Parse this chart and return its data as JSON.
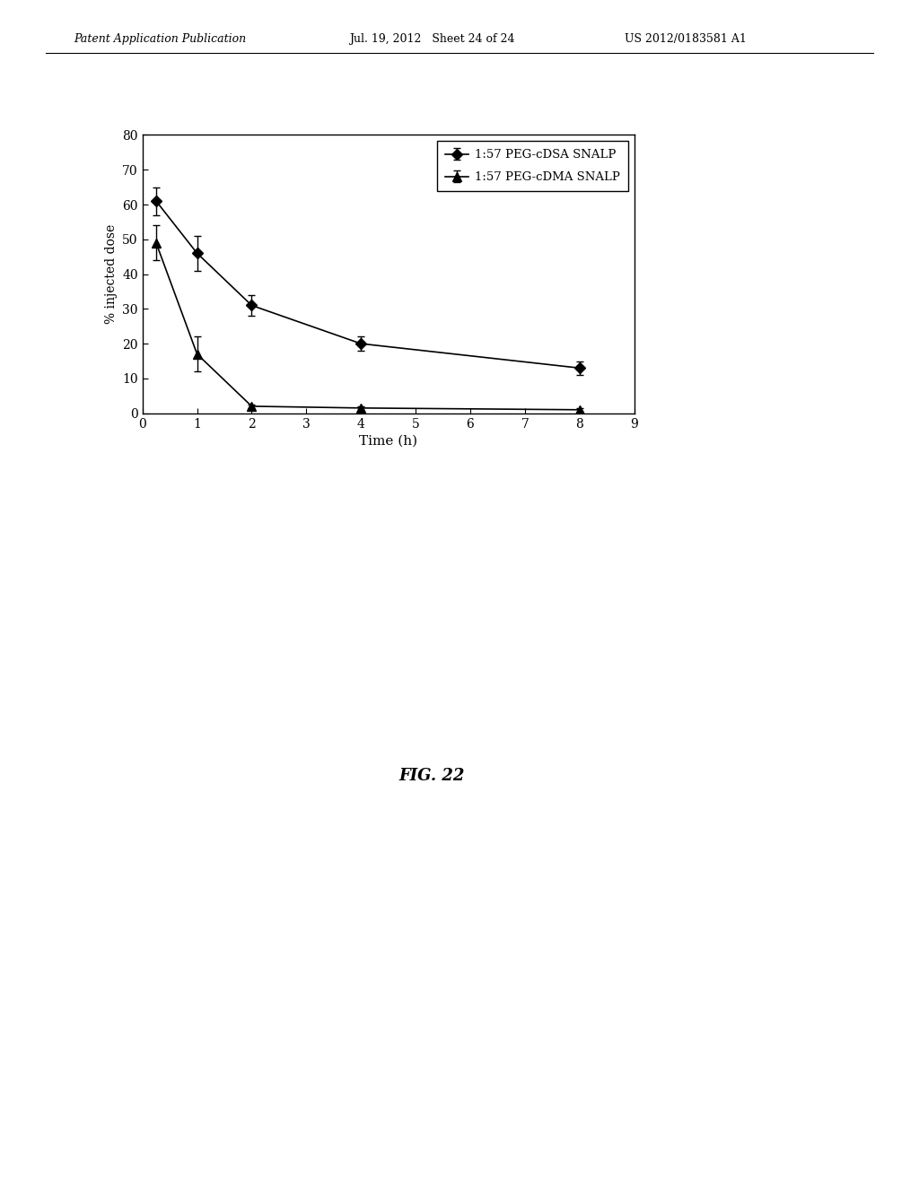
{
  "title": "",
  "xlabel": "Time (h)",
  "ylabel": "% injected dose",
  "fig_label": "FIG. 22",
  "header_left": "Patent Application Publication",
  "header_mid": "Jul. 19, 2012   Sheet 24 of 24",
  "header_right": "US 2012/0183581 A1",
  "xlim": [
    0,
    9
  ],
  "ylim": [
    0,
    80
  ],
  "xticks": [
    0,
    1,
    2,
    3,
    4,
    5,
    6,
    7,
    8,
    9
  ],
  "yticks": [
    0,
    10,
    20,
    30,
    40,
    50,
    60,
    70,
    80
  ],
  "series1_label": "1:57 PEG-cDSA SNALP",
  "series1_x": [
    0.25,
    1,
    2,
    4,
    8
  ],
  "series1_y": [
    61,
    46,
    31,
    20,
    13
  ],
  "series1_yerr": [
    4,
    5,
    3,
    2,
    2
  ],
  "series1_marker": "D",
  "series1_color": "#000000",
  "series2_label": "1:57 PEG-cDMA SNALP",
  "series2_x": [
    0.25,
    1,
    2,
    4,
    8
  ],
  "series2_y": [
    49,
    17,
    2,
    1.5,
    1
  ],
  "series2_yerr": [
    5,
    5,
    0.5,
    0.5,
    0.5
  ],
  "series2_marker": "^",
  "series2_color": "#000000",
  "background_color": "#ffffff",
  "plot_bg_color": "#ffffff",
  "font_color": "#000000",
  "figsize": [
    10.24,
    13.2
  ],
  "dpi": 100
}
